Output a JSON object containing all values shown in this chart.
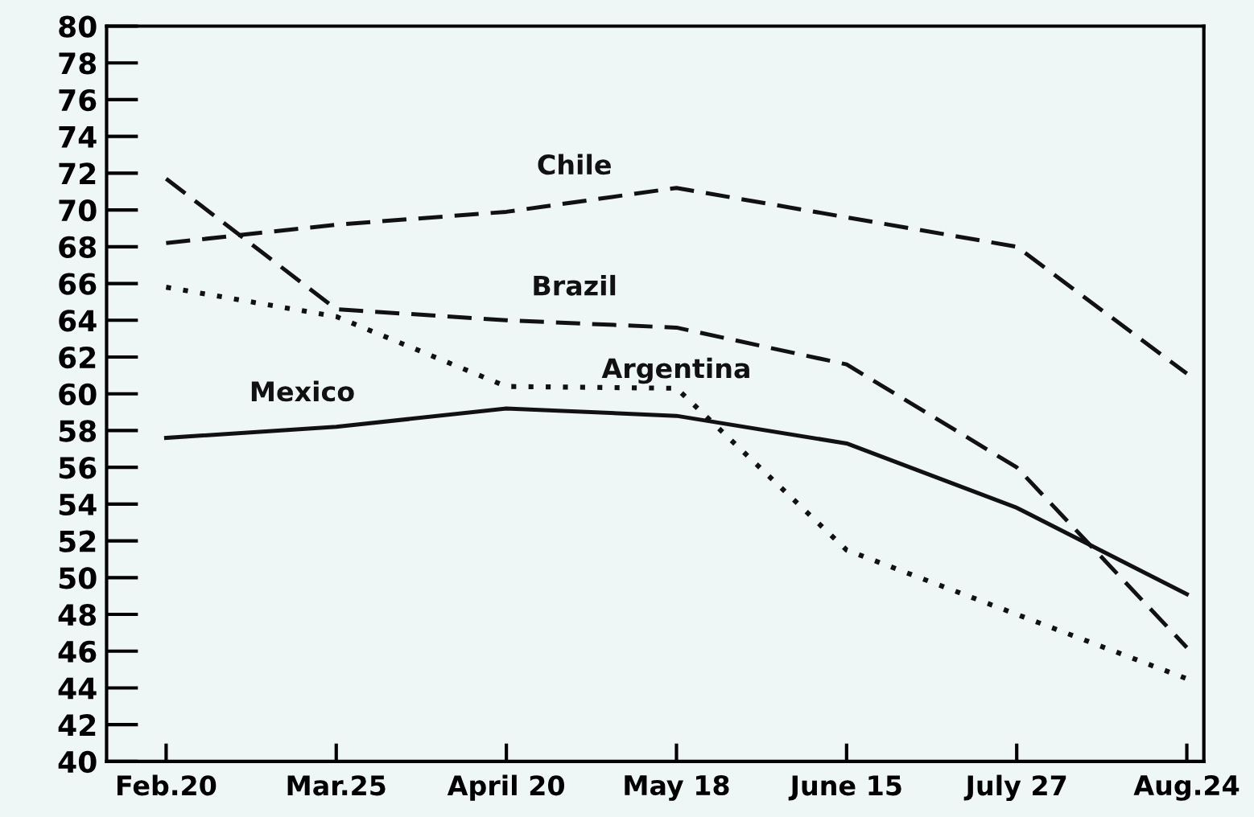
{
  "chart_data": {
    "type": "line",
    "categories": [
      "Feb.20",
      "Mar.25",
      "April 20",
      "May 18",
      "June 15",
      "July 27",
      "Aug.24"
    ],
    "series": [
      {
        "name": "Chile",
        "color": "#111111",
        "line_style": "dashed",
        "values": [
          68.2,
          69.2,
          69.9,
          71.2,
          69.6,
          68.0,
          61.1
        ]
      },
      {
        "name": "Brazil",
        "color": "#111111",
        "line_style": "dashed",
        "values": [
          71.7,
          64.6,
          64.0,
          63.6,
          61.6,
          56.0,
          46.2
        ]
      },
      {
        "name": "Argentina",
        "color": "#111111",
        "line_style": "dotted",
        "values": [
          65.8,
          64.2,
          60.4,
          60.3,
          51.5,
          48.0,
          44.5
        ]
      },
      {
        "name": "Mexico",
        "color": "#111111",
        "line_style": "solid",
        "values": [
          57.6,
          58.2,
          59.2,
          58.8,
          57.3,
          53.8,
          49.1
        ]
      }
    ],
    "ylim": [
      40,
      80
    ],
    "yticks": [
      40,
      42,
      44,
      46,
      48,
      50,
      52,
      54,
      56,
      58,
      60,
      62,
      64,
      66,
      68,
      70,
      72,
      74,
      76,
      78,
      80
    ],
    "grid": false,
    "legend": false,
    "marker": "none"
  }
}
